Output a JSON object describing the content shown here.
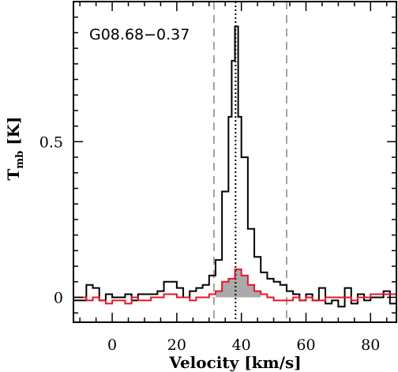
{
  "chart_data": {
    "type": "line",
    "title": "",
    "source_label": "G08.68−0.37",
    "xlabel": "Velocity [km/s]",
    "ylabel_main": "T",
    "ylabel_sub": "mb",
    "ylabel_unit": " [K]",
    "xlim": [
      -12,
      88
    ],
    "ylim": [
      -0.08,
      0.95
    ],
    "xticks": [
      0,
      20,
      40,
      60,
      80
    ],
    "xtick_labels": [
      "0",
      "20",
      "40",
      "60",
      "80"
    ],
    "yticks": [
      0,
      0.5
    ],
    "ytick_labels": [
      "0",
      "0.5"
    ],
    "vlines": {
      "center_dotted": 38.2,
      "window_dashed": [
        31.5,
        54.0
      ]
    },
    "series": [
      {
        "type": "step",
        "color": "#000000",
        "x_edges": [
          -12,
          -10,
          -8,
          -6,
          -4,
          -2,
          0,
          2,
          4,
          6,
          8,
          10,
          12,
          14,
          16,
          18,
          20,
          22,
          24,
          26,
          28,
          30,
          32,
          34,
          36,
          37,
          38,
          39,
          40,
          42,
          44,
          46,
          48,
          50,
          52,
          54,
          56,
          58,
          60,
          62,
          64,
          66,
          68,
          70,
          72,
          74,
          76,
          78,
          80,
          82,
          84,
          86,
          88
        ],
        "values": [
          -0.01,
          -0.01,
          0.04,
          0.03,
          -0.01,
          0.01,
          0.0,
          0.0,
          0.01,
          -0.01,
          0.01,
          0.01,
          0.01,
          0.02,
          0.05,
          0.05,
          0.03,
          0.0,
          0.02,
          0.03,
          0.04,
          0.07,
          0.12,
          0.34,
          0.58,
          0.76,
          0.87,
          0.58,
          0.45,
          0.22,
          0.13,
          0.08,
          0.06,
          0.05,
          0.04,
          0.02,
          0.01,
          -0.01,
          0.01,
          -0.01,
          0.03,
          -0.02,
          -0.01,
          -0.03,
          0.03,
          -0.02,
          0.01,
          -0.01,
          0.0,
          0.0,
          0.02,
          -0.02
        ]
      },
      {
        "type": "step",
        "color": "#e8142a",
        "fill": "#aaaaaa",
        "fill_range": [
          32,
          46
        ],
        "x_edges": [
          -12,
          -10,
          -8,
          -6,
          -4,
          -2,
          0,
          2,
          4,
          6,
          8,
          10,
          12,
          14,
          16,
          18,
          20,
          22,
          24,
          26,
          28,
          30,
          32,
          34,
          36,
          38,
          40,
          42,
          44,
          46,
          48,
          50,
          52,
          54,
          56,
          58,
          60,
          62,
          64,
          66,
          68,
          70,
          72,
          74,
          76,
          78,
          80,
          82,
          84,
          86,
          88
        ],
        "values": [
          0.0,
          0.0,
          -0.01,
          0.0,
          -0.01,
          -0.02,
          -0.01,
          -0.01,
          -0.02,
          0.0,
          -0.01,
          -0.01,
          0.0,
          0.0,
          0.01,
          0.01,
          0.0,
          0.0,
          -0.01,
          0.0,
          0.0,
          0.01,
          0.02,
          0.05,
          0.06,
          0.09,
          0.07,
          0.04,
          0.02,
          0.01,
          0.0,
          -0.01,
          -0.01,
          -0.01,
          0.0,
          -0.01,
          0.0,
          -0.01,
          -0.01,
          0.0,
          0.0,
          0.0,
          0.0,
          -0.01,
          0.0,
          0.0,
          0.01,
          0.01,
          0.01,
          0.01
        ]
      }
    ]
  }
}
